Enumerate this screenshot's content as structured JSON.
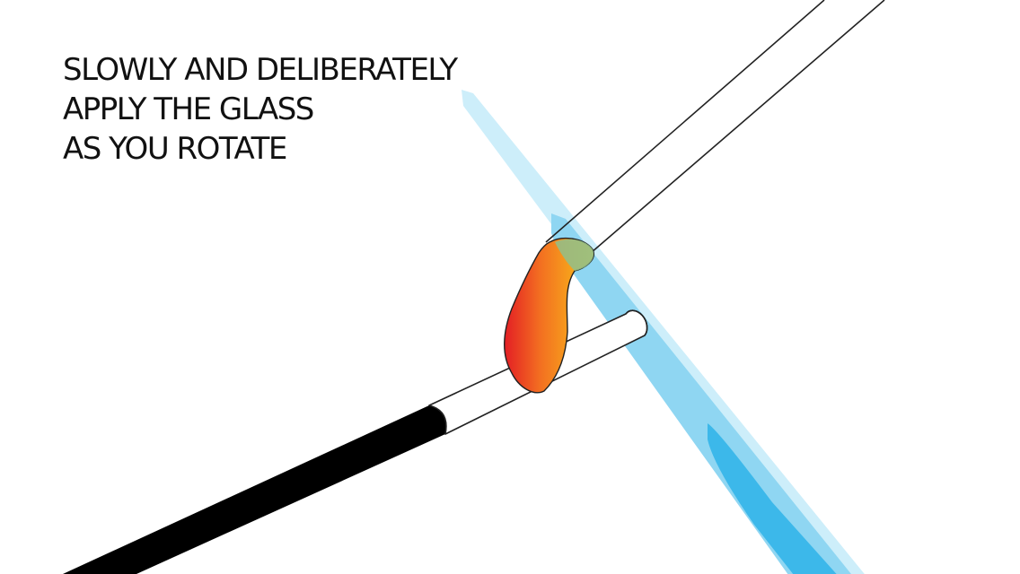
{
  "caption": {
    "line1": "SLOWLY AND DELIBERATELY",
    "line2": "APPLY THE GLASS",
    "line3": "AS YOU ROTATE"
  },
  "colors": {
    "background": "#ffffff",
    "text": "#111111",
    "flame_outer": "#cdeefa",
    "flame_middle": "#8fd6f2",
    "flame_core": "#3cb8ea",
    "glass_gradient": [
      "#e31e24",
      "#f36f21",
      "#f7a81b",
      "#fbbf24"
    ],
    "glass_tip": "#8fbf8c",
    "mandrel_handle": "#000000",
    "outline": "#222222"
  },
  "icons": [
    "torch-flame-icon",
    "glass-rod-icon",
    "mandrel-icon",
    "molten-glass-icon"
  ]
}
